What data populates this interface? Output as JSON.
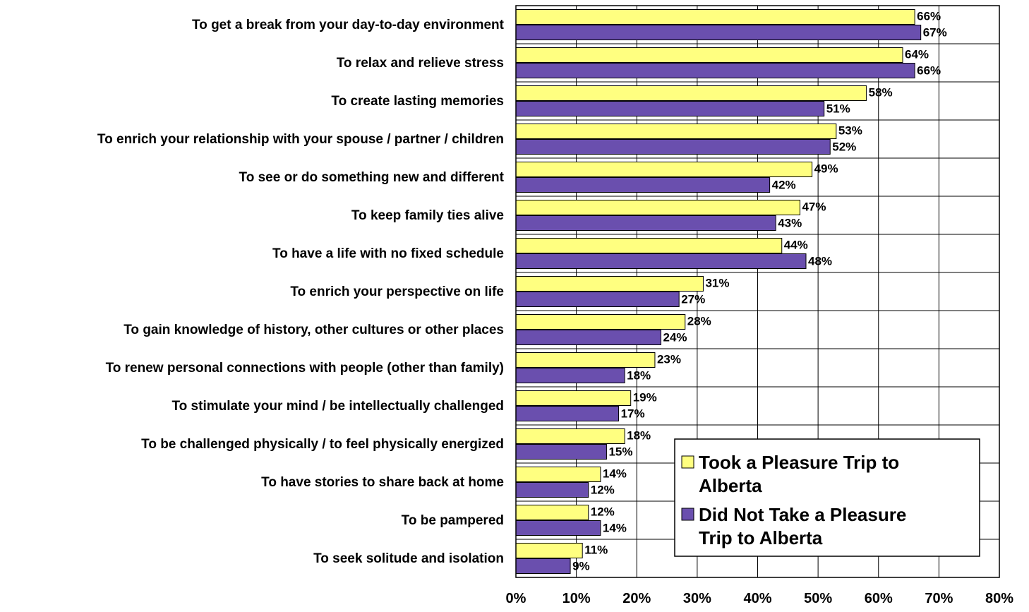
{
  "chart_data": {
    "type": "bar",
    "orientation": "horizontal",
    "categories": [
      "To get a break from your day-to-day environment",
      "To relax and relieve stress",
      "To create lasting memories",
      "To enrich your relationship with your spouse / partner / children",
      "To see or do something new and different",
      "To keep family ties alive",
      "To have a life with no fixed schedule",
      "To enrich your perspective on life",
      "To gain knowledge of history, other cultures or other places",
      "To renew personal connections with people (other than family)",
      "To stimulate your mind / be intellectually challenged",
      "To be challenged physically / to feel physically energized",
      "To have stories to share back at home",
      "To be pampered",
      "To seek solitude and isolation"
    ],
    "series": [
      {
        "name": "Took a Pleasure Trip to Alberta",
        "color": "#ffff80",
        "values": [
          66,
          64,
          58,
          53,
          49,
          47,
          44,
          31,
          28,
          23,
          19,
          18,
          14,
          12,
          11
        ],
        "labels": [
          "66%",
          "64%",
          "58%",
          "53%",
          "49%",
          "47%",
          "44%",
          "31%",
          "28%",
          "23%",
          "19%",
          "18%",
          "14%",
          "12%",
          "11%"
        ]
      },
      {
        "name": "Did Not Take a Pleasure Trip to Alberta",
        "color": "#6a4fae",
        "values": [
          67,
          66,
          51,
          52,
          42,
          43,
          48,
          27,
          24,
          18,
          17,
          15,
          12,
          14,
          9
        ],
        "labels": [
          "67%",
          "66%",
          "51%",
          "52%",
          "42%",
          "43%",
          "48%",
          "27%",
          "24%",
          "18%",
          "17%",
          "15%",
          "12%",
          "14%",
          "9%"
        ]
      }
    ],
    "xlim": [
      0,
      80
    ],
    "xticks": [
      0,
      10,
      20,
      30,
      40,
      50,
      60,
      70,
      80
    ],
    "xtick_labels": [
      "0%",
      "10%",
      "20%",
      "30%",
      "40%",
      "50%",
      "60%",
      "70%",
      "80%"
    ],
    "grid": true,
    "legend": {
      "position": "bottom-right",
      "entries": [
        [
          "Took a Pleasure Trip to",
          "Alberta"
        ],
        [
          "Did Not Take a Pleasure",
          "Trip to Alberta"
        ]
      ]
    },
    "title": "",
    "xlabel": "",
    "ylabel": ""
  }
}
